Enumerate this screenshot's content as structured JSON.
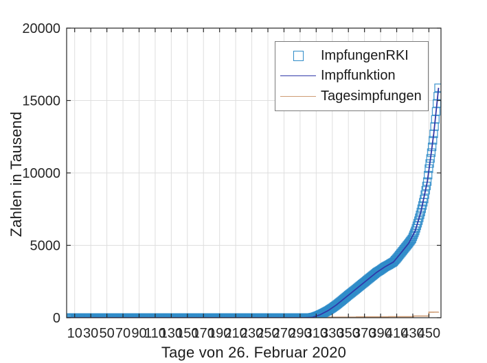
{
  "figure": {
    "xlabel": "Tage von 26. Februar 2020",
    "ylabel": "Zahlen in Tausend"
  },
  "legend": {
    "items": [
      {
        "label": "ImpfungenRKI",
        "marker": "open-square-icon",
        "color": "#2E8BC8"
      },
      {
        "label": "Impffunktion",
        "marker": "line-icon",
        "color": "#3038A8"
      },
      {
        "label": "Tagesimpfungen",
        "marker": "line-icon",
        "color": "#CE9B72"
      }
    ]
  },
  "chart_data": {
    "type": "line",
    "title": "",
    "xlabel": "Tage von 26. Februar 2020",
    "ylabel": "Zahlen in Tausend",
    "xlim": [
      0,
      465
    ],
    "ylim": [
      0,
      20000
    ],
    "x_ticks": [
      10,
      30,
      50,
      70,
      90,
      110,
      130,
      150,
      170,
      190,
      210,
      230,
      250,
      270,
      290,
      310,
      330,
      350,
      370,
      390,
      410,
      430,
      450
    ],
    "y_ticks": [
      0,
      5000,
      10000,
      15000,
      20000
    ],
    "grid": true,
    "legend_position": "top-right-inside",
    "colors": {
      "grid": "#dedede",
      "axis": "#262626",
      "tick_text": "#262626"
    },
    "series": [
      {
        "name": "ImpfungenRKI",
        "type": "scatter",
        "marker": "open-square",
        "color": "#2E8BC8",
        "markers_daily_interpolated": true,
        "points": [
          [
            1,
            0
          ],
          [
            30,
            0
          ],
          [
            60,
            0
          ],
          [
            90,
            0
          ],
          [
            120,
            0
          ],
          [
            150,
            0
          ],
          [
            180,
            0
          ],
          [
            210,
            0
          ],
          [
            240,
            0
          ],
          [
            270,
            0
          ],
          [
            295,
            0
          ],
          [
            300,
            3
          ],
          [
            304,
            15
          ],
          [
            308,
            60
          ],
          [
            312,
            140
          ],
          [
            316,
            240
          ],
          [
            320,
            350
          ],
          [
            325,
            500
          ],
          [
            330,
            680
          ],
          [
            335,
            880
          ],
          [
            340,
            1100
          ],
          [
            345,
            1330
          ],
          [
            350,
            1560
          ],
          [
            355,
            1780
          ],
          [
            360,
            2000
          ],
          [
            365,
            2230
          ],
          [
            370,
            2450
          ],
          [
            375,
            2680
          ],
          [
            380,
            2900
          ],
          [
            385,
            3130
          ],
          [
            390,
            3300
          ],
          [
            395,
            3500
          ],
          [
            400,
            3650
          ],
          [
            406,
            3850
          ],
          [
            410,
            4100
          ],
          [
            415,
            4450
          ],
          [
            420,
            4800
          ],
          [
            425,
            5150
          ],
          [
            429,
            5450
          ],
          [
            433,
            6000
          ],
          [
            437,
            6700
          ],
          [
            440,
            7300
          ],
          [
            444,
            8200
          ],
          [
            448,
            9400
          ],
          [
            450,
            10300
          ],
          [
            452,
            11000
          ],
          [
            454,
            11800
          ],
          [
            456,
            12700
          ],
          [
            458,
            13700
          ],
          [
            460,
            14800
          ],
          [
            461,
            15300
          ],
          [
            462,
            15880
          ]
        ]
      },
      {
        "name": "Impffunktion",
        "type": "line",
        "color": "#3038A8",
        "points": [
          [
            1,
            0
          ],
          [
            150,
            0
          ],
          [
            295,
            0
          ],
          [
            305,
            20
          ],
          [
            315,
            210
          ],
          [
            325,
            500
          ],
          [
            335,
            880
          ],
          [
            345,
            1330
          ],
          [
            355,
            1780
          ],
          [
            365,
            2230
          ],
          [
            375,
            2680
          ],
          [
            385,
            3130
          ],
          [
            395,
            3500
          ],
          [
            406,
            3850
          ],
          [
            415,
            4450
          ],
          [
            425,
            5150
          ],
          [
            433,
            6000
          ],
          [
            440,
            7300
          ],
          [
            448,
            9400
          ],
          [
            452,
            11000
          ],
          [
            456,
            12700
          ],
          [
            460,
            14800
          ],
          [
            462,
            15880
          ]
        ]
      },
      {
        "name": "Tagesimpfungen",
        "type": "step-line",
        "color": "#CE9B72",
        "points": [
          [
            1,
            0
          ],
          [
            300,
            0
          ],
          [
            308,
            40
          ],
          [
            360,
            55
          ],
          [
            400,
            70
          ],
          [
            430,
            70
          ],
          [
            431,
            115
          ],
          [
            449,
            115
          ],
          [
            450,
            380
          ],
          [
            456,
            385
          ],
          [
            462,
            400
          ]
        ]
      }
    ]
  }
}
